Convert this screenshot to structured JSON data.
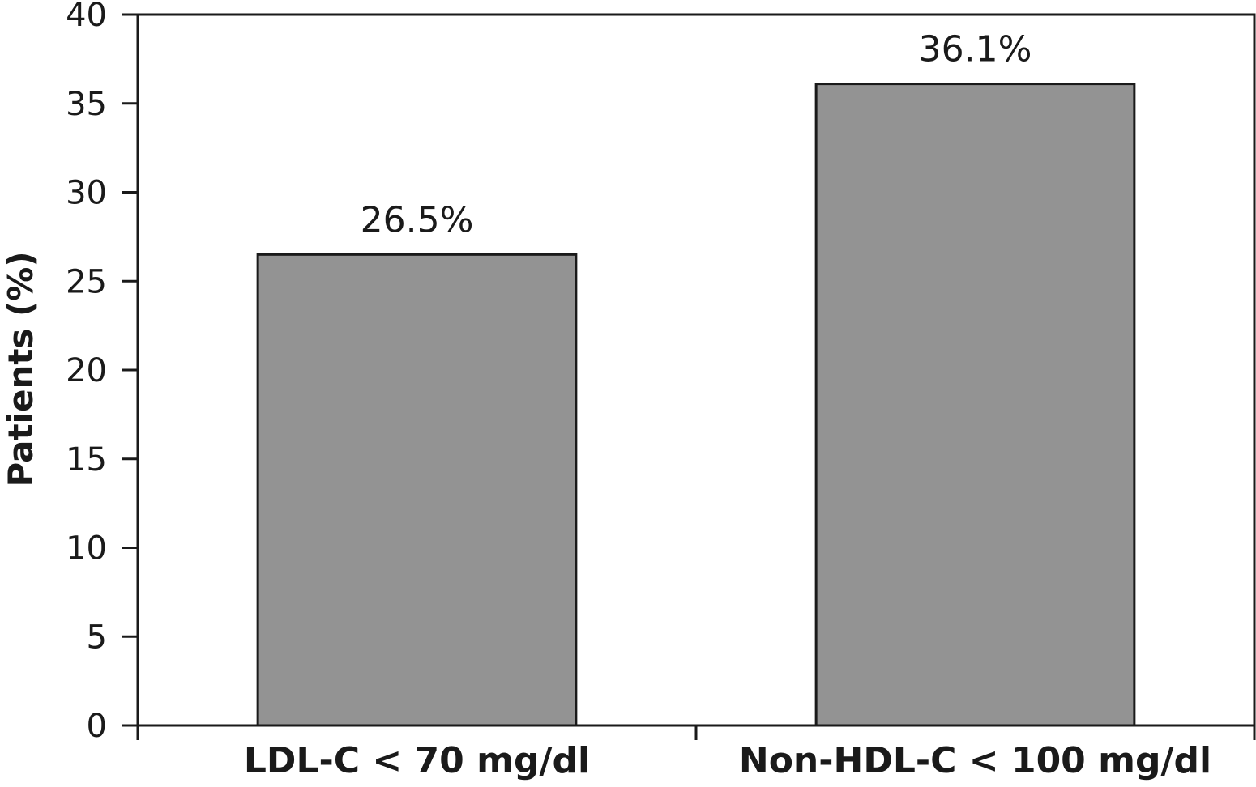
{
  "chart_data": {
    "type": "bar",
    "title": "",
    "xlabel": "",
    "ylabel": "Patients (%)",
    "ylim": [
      0,
      40
    ],
    "yticks": [
      0,
      5,
      10,
      15,
      20,
      25,
      30,
      35,
      40
    ],
    "grid": false,
    "legend": "none",
    "categories": [
      "LDL-C < 70 mg/dl",
      "Non-HDL-C < 100 mg/dl"
    ],
    "values": [
      26.5,
      36.1
    ],
    "value_labels": [
      "26.5%",
      "36.1%"
    ],
    "colors": {
      "bar_fill": "#939393",
      "bar_stroke": "#1a1a1a",
      "axis": "#1a1a1a",
      "background": "#ffffff"
    }
  }
}
